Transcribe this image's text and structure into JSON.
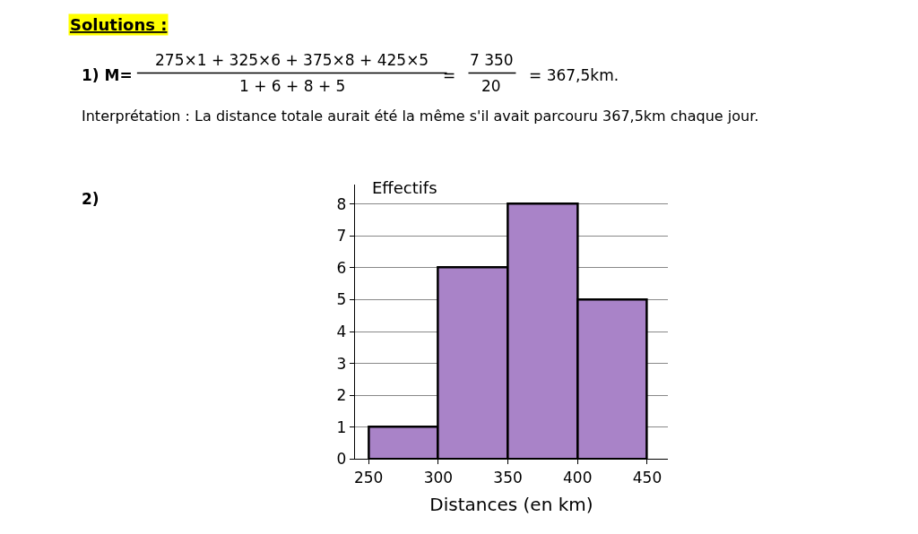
{
  "chart_data": {
    "type": "histogram",
    "title": "Solutions :",
    "annotations": [
      "1) M=",
      "275×1 + 325×6 + 375×8 + 425×5",
      "1 + 6 + 8 + 5",
      "=",
      "7 350",
      "20",
      "= 367,5km.",
      "Interprétation : La distance totale aurait été la même s'il avait parcouru 367,5km chaque jour.",
      "2)"
    ],
    "xlabel": "Distances (en km)",
    "ylabel": "Effectifs",
    "bins": [
      250,
      300,
      350,
      400,
      450
    ],
    "values": [
      1,
      6,
      8,
      5
    ],
    "color": "#a983c8",
    "xlim": [
      240,
      465
    ],
    "xticks": [
      250,
      300,
      350,
      400,
      450
    ],
    "ylim": [
      0,
      8.6
    ],
    "yticks": [
      0,
      1,
      2,
      3,
      4,
      5,
      6,
      7,
      8
    ],
    "grid": "y"
  }
}
